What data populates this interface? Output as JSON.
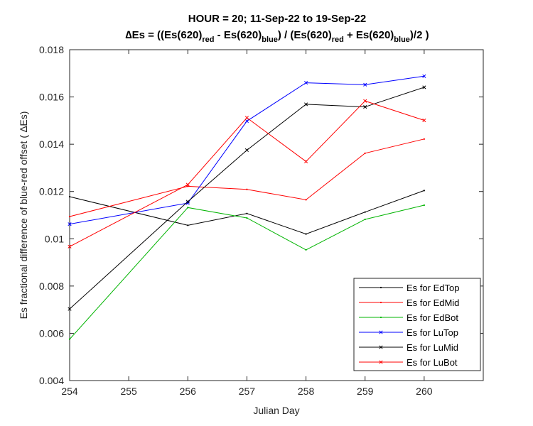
{
  "chart_data": {
    "type": "line",
    "title_line1": "HOUR = 20; 11-Sep-22 to 19-Sep-22",
    "title_line2": {
      "delta": "∆",
      "p1": "Es = ((Es(620)",
      "s1": "red",
      "p2": " - Es(620)",
      "s2": "blue",
      "p3": ") / (Es(620)",
      "s3": "red",
      "p4": " + Es(620)",
      "s4": "blue",
      "p5": ")/2  )"
    },
    "xlabel": "Julian Day",
    "ylabel": "Es fractional difference of blue-red offset (  ∆Es)",
    "xlim": [
      254,
      261
    ],
    "ylim": [
      0.004,
      0.018
    ],
    "xticks": [
      254,
      255,
      256,
      257,
      258,
      259,
      260
    ],
    "xtick_labels": [
      "254",
      "255",
      "256",
      "257",
      "258",
      "259",
      "260"
    ],
    "yticks": [
      0.004,
      0.006,
      0.008,
      0.01,
      0.012,
      0.014,
      0.016,
      0.018
    ],
    "ytick_labels": [
      "0.004",
      "0.006",
      "0.008",
      "0.01",
      "0.012",
      "0.014",
      "0.016",
      "0.018"
    ],
    "x": [
      254,
      256,
      257,
      258,
      259,
      260
    ],
    "grid": false,
    "legend_position": "bottom-right",
    "series": [
      {
        "name": "Es for EdTop",
        "color": "#000000",
        "marker": "dot",
        "values": [
          0.01178,
          0.01057,
          0.01107,
          0.0102,
          0.01113,
          0.01204
        ]
      },
      {
        "name": "Es for EdMid",
        "color": "#ff0000",
        "marker": "dot",
        "values": [
          0.01094,
          0.01222,
          0.01209,
          0.01165,
          0.01362,
          0.01422
        ]
      },
      {
        "name": "Es for EdBot",
        "color": "#00b400",
        "marker": "dot",
        "values": [
          0.00575,
          0.01132,
          0.01088,
          0.00953,
          0.01082,
          0.01142
        ]
      },
      {
        "name": "Es for LuTop",
        "color": "#0000ff",
        "marker": "x",
        "values": [
          0.01062,
          0.01151,
          0.01498,
          0.0166,
          0.01652,
          0.01688
        ]
      },
      {
        "name": "Es for LuMid",
        "color": "#000000",
        "marker": "x",
        "values": [
          0.00703,
          0.01157,
          0.01375,
          0.01569,
          0.01558,
          0.01641
        ]
      },
      {
        "name": "Es for LuBot",
        "color": "#ff0000",
        "marker": "x",
        "values": [
          0.00967,
          0.01229,
          0.01512,
          0.01327,
          0.01583,
          0.01501
        ]
      }
    ]
  }
}
